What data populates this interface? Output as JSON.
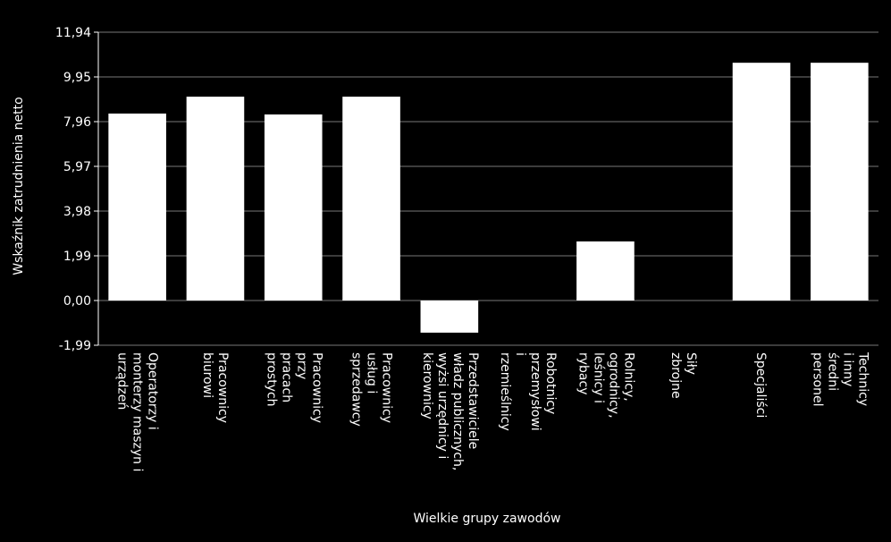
{
  "chart_data": {
    "type": "bar",
    "x_label": "Wielkie grupy zawodów",
    "y_label": "Wskaźnik zatrudnienia netto",
    "categories": [
      "Operatorzy i\nmonterzy maszyn i\nurządzeń",
      "Pracownicy\nbiurowi",
      "Pracownicy\nprzy\npracach\nprostych",
      "Pracownicy\nusług i\nsprzedawcy",
      "Przedstawiciele\nwładz publicznych,\nwyżsi urzędnicy i\nkierownicy",
      "Robotnicy\nprzemysłowi\ni\nrzemieślnicy",
      "Rolnicy,\nogrodnicy,\nleśnicy i\nrybacy",
      "Siły\nzbrojne",
      "Specjaliści",
      "Technicy\ni inny\nśredni\npersonel"
    ],
    "values": [
      8.32,
      9.07,
      8.28,
      9.07,
      -1.43,
      0,
      2.63,
      0,
      10.58,
      10.58
    ],
    "color": "#ffffff",
    "ylim": [
      -1.99,
      11.94
    ],
    "yticks": [
      {
        "value": -1.99,
        "label": "-1,99"
      },
      {
        "value": 0,
        "label": "0,00"
      },
      {
        "value": 1.99,
        "label": "1,99"
      },
      {
        "value": 3.98,
        "label": "3,98"
      },
      {
        "value": 5.97,
        "label": "5,97"
      },
      {
        "value": 7.96,
        "label": "7,96"
      },
      {
        "value": 9.95,
        "label": "9,95"
      },
      {
        "value": 11.94,
        "label": "11,94"
      }
    ],
    "grid": true
  }
}
